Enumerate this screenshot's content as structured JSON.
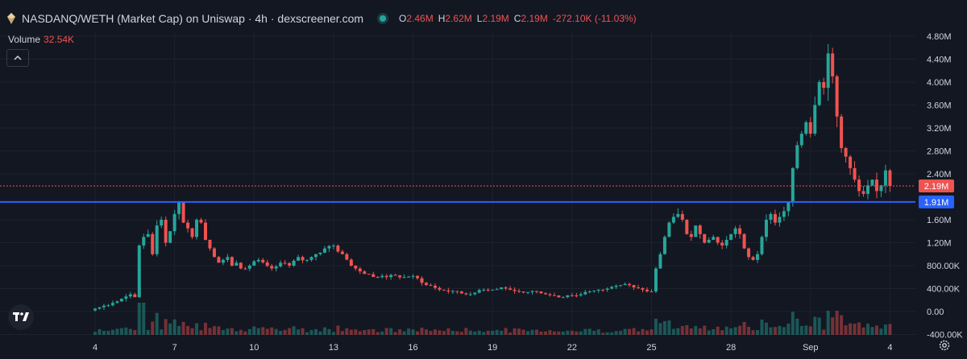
{
  "header": {
    "title": "NASDANQ/WETH (Market Cap) on Uniswap · 4h · dexscreener.com",
    "o_key": "O",
    "o_val": "2.46M",
    "h_key": "H",
    "h_val": "2.62M",
    "l_key": "L",
    "l_val": "2.19M",
    "c_key": "C",
    "c_val": "2.19M",
    "change": "-272.10K (-11.03%)"
  },
  "volume": {
    "label": "Volume",
    "value": "32.54K"
  },
  "icons": {
    "collapse": "chevron-up-icon",
    "logo": "tradingview-logo-icon",
    "settings": "gear-icon",
    "token": "token-icon"
  },
  "colors": {
    "up": "#26a69a",
    "down": "#ef5350",
    "support_line": "#2962ff",
    "background": "#131722"
  },
  "price_tag": {
    "label": "2.19M",
    "value": 2.19
  },
  "support_tag": {
    "label": "1.91M",
    "value": 1.91
  },
  "chart_data": {
    "type": "candlestick",
    "y_unit": "M",
    "ylim": [
      -0.4,
      4.8
    ],
    "y_ticks": [
      {
        "v": 4.8,
        "label": "4.80M"
      },
      {
        "v": 4.4,
        "label": "4.40M"
      },
      {
        "v": 4.0,
        "label": "4.00M"
      },
      {
        "v": 3.6,
        "label": "3.60M"
      },
      {
        "v": 3.2,
        "label": "3.20M"
      },
      {
        "v": 2.8,
        "label": "2.80M"
      },
      {
        "v": 2.4,
        "label": "2.40M"
      },
      {
        "v": 1.6,
        "label": "1.60M"
      },
      {
        "v": 1.2,
        "label": "1.20M"
      },
      {
        "v": 0.8,
        "label": "800.00K"
      },
      {
        "v": 0.4,
        "label": "400.00K"
      },
      {
        "v": 0.0,
        "label": "0.00"
      },
      {
        "v": -0.4,
        "label": "-400.00K"
      }
    ],
    "x_ticks": [
      {
        "i": 0,
        "label": "4"
      },
      {
        "i": 18,
        "label": "7"
      },
      {
        "i": 36,
        "label": "10"
      },
      {
        "i": 54,
        "label": "13"
      },
      {
        "i": 72,
        "label": "16"
      },
      {
        "i": 90,
        "label": "19"
      },
      {
        "i": 108,
        "label": "22"
      },
      {
        "i": 126,
        "label": "25"
      },
      {
        "i": 144,
        "label": "28"
      },
      {
        "i": 162,
        "label": "Sep"
      },
      {
        "i": 180,
        "label": "4"
      }
    ],
    "support_level": 1.91,
    "last_close": 2.19,
    "keypoints": [
      [
        0,
        0.05
      ],
      [
        4,
        0.15
      ],
      [
        8,
        0.3
      ],
      [
        9,
        0.25
      ],
      [
        10,
        1.15
      ],
      [
        11,
        1.3
      ],
      [
        12,
        1.35
      ],
      [
        13,
        1.0
      ],
      [
        14,
        1.5
      ],
      [
        15,
        1.6
      ],
      [
        16,
        1.2
      ],
      [
        17,
        1.4
      ],
      [
        18,
        1.7
      ],
      [
        19,
        1.9
      ],
      [
        20,
        1.55
      ],
      [
        21,
        1.45
      ],
      [
        22,
        1.3
      ],
      [
        23,
        1.6
      ],
      [
        24,
        1.55
      ],
      [
        25,
        1.25
      ],
      [
        26,
        1.1
      ],
      [
        27,
        0.95
      ],
      [
        28,
        0.85
      ],
      [
        29,
        0.9
      ],
      [
        30,
        0.95
      ],
      [
        31,
        0.8
      ],
      [
        32,
        0.85
      ],
      [
        33,
        0.75
      ],
      [
        35,
        0.8
      ],
      [
        37,
        0.9
      ],
      [
        40,
        0.75
      ],
      [
        42,
        0.85
      ],
      [
        44,
        0.8
      ],
      [
        46,
        0.95
      ],
      [
        48,
        0.9
      ],
      [
        50,
        1.0
      ],
      [
        52,
        1.1
      ],
      [
        54,
        1.15
      ],
      [
        56,
        1.0
      ],
      [
        58,
        0.8
      ],
      [
        60,
        0.7
      ],
      [
        62,
        0.65
      ],
      [
        64,
        0.6
      ],
      [
        66,
        0.6
      ],
      [
        68,
        0.63
      ],
      [
        70,
        0.6
      ],
      [
        72,
        0.62
      ],
      [
        74,
        0.5
      ],
      [
        76,
        0.45
      ],
      [
        78,
        0.38
      ],
      [
        80,
        0.35
      ],
      [
        82,
        0.35
      ],
      [
        84,
        0.3
      ],
      [
        86,
        0.33
      ],
      [
        88,
        0.38
      ],
      [
        90,
        0.38
      ],
      [
        92,
        0.42
      ],
      [
        94,
        0.38
      ],
      [
        96,
        0.35
      ],
      [
        98,
        0.34
      ],
      [
        100,
        0.35
      ],
      [
        102,
        0.3
      ],
      [
        104,
        0.28
      ],
      [
        106,
        0.25
      ],
      [
        108,
        0.28
      ],
      [
        110,
        0.3
      ],
      [
        112,
        0.35
      ],
      [
        114,
        0.38
      ],
      [
        116,
        0.4
      ],
      [
        118,
        0.45
      ],
      [
        120,
        0.48
      ],
      [
        122,
        0.42
      ],
      [
        124,
        0.38
      ],
      [
        126,
        0.35
      ],
      [
        127,
        0.75
      ],
      [
        128,
        1.0
      ],
      [
        129,
        1.3
      ],
      [
        130,
        1.55
      ],
      [
        131,
        1.65
      ],
      [
        132,
        1.7
      ],
      [
        133,
        1.6
      ],
      [
        134,
        1.35
      ],
      [
        135,
        1.3
      ],
      [
        136,
        1.5
      ],
      [
        137,
        1.35
      ],
      [
        138,
        1.2
      ],
      [
        139,
        1.25
      ],
      [
        140,
        1.3
      ],
      [
        141,
        1.2
      ],
      [
        142,
        1.15
      ],
      [
        143,
        1.25
      ],
      [
        144,
        1.35
      ],
      [
        145,
        1.45
      ],
      [
        146,
        1.35
      ],
      [
        147,
        1.1
      ],
      [
        148,
        0.95
      ],
      [
        149,
        0.9
      ],
      [
        150,
        1.0
      ],
      [
        151,
        1.3
      ],
      [
        152,
        1.6
      ],
      [
        153,
        1.7
      ],
      [
        154,
        1.55
      ],
      [
        155,
        1.65
      ],
      [
        156,
        1.75
      ],
      [
        157,
        1.9
      ],
      [
        158,
        2.5
      ],
      [
        159,
        2.9
      ],
      [
        160,
        3.1
      ],
      [
        161,
        3.3
      ],
      [
        162,
        3.1
      ],
      [
        163,
        3.6
      ],
      [
        164,
        4.0
      ],
      [
        165,
        3.9
      ],
      [
        166,
        4.5
      ],
      [
        167,
        4.1
      ],
      [
        168,
        3.4
      ],
      [
        169,
        2.85
      ],
      [
        170,
        2.7
      ],
      [
        171,
        2.5
      ],
      [
        172,
        2.3
      ],
      [
        173,
        2.1
      ],
      [
        174,
        2.05
      ],
      [
        175,
        2.2
      ],
      [
        176,
        2.3
      ],
      [
        177,
        2.1
      ],
      [
        178,
        2.2
      ],
      [
        179,
        2.46
      ],
      [
        180,
        2.19
      ]
    ]
  }
}
